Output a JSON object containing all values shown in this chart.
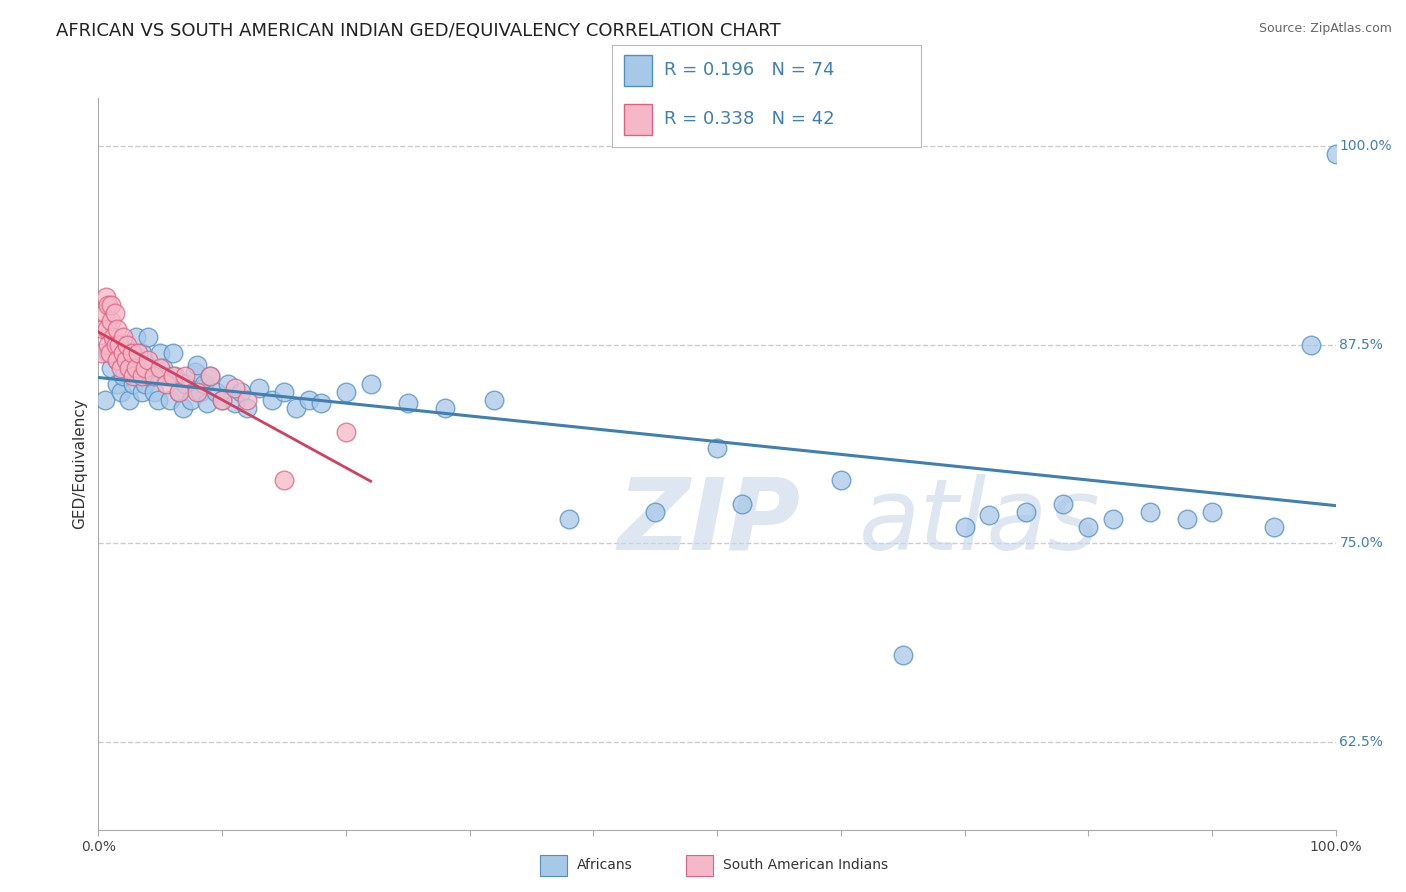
{
  "title": "AFRICAN VS SOUTH AMERICAN INDIAN GED/EQUIVALENCY CORRELATION CHART",
  "source": "Source: ZipAtlas.com",
  "ylabel": "GED/Equivalency",
  "watermark_zip": "ZIP",
  "watermark_atlas": "atlas",
  "blue_R": "0.196",
  "blue_N": "74",
  "pink_R": "0.338",
  "pink_N": "42",
  "blue_color": "#a8c8e8",
  "pink_color": "#f4b8c8",
  "blue_edge_color": "#5090c0",
  "pink_edge_color": "#e06080",
  "blue_line_color": "#4080b0",
  "pink_line_color": "#d04060",
  "legend_color": "#4080b0",
  "blue_x": [
    0.005,
    0.008,
    0.01,
    0.012,
    0.015,
    0.015,
    0.018,
    0.02,
    0.022,
    0.025,
    0.025,
    0.028,
    0.03,
    0.03,
    0.032,
    0.035,
    0.035,
    0.038,
    0.04,
    0.04,
    0.042,
    0.045,
    0.048,
    0.05,
    0.052,
    0.055,
    0.058,
    0.06,
    0.062,
    0.065,
    0.068,
    0.07,
    0.075,
    0.078,
    0.08,
    0.082,
    0.085,
    0.088,
    0.09,
    0.095,
    0.1,
    0.105,
    0.11,
    0.115,
    0.12,
    0.13,
    0.14,
    0.15,
    0.16,
    0.17,
    0.18,
    0.2,
    0.22,
    0.25,
    0.28,
    0.32,
    0.38,
    0.45,
    0.5,
    0.52,
    0.6,
    0.65,
    0.7,
    0.72,
    0.75,
    0.78,
    0.8,
    0.82,
    0.85,
    0.88,
    0.9,
    0.95,
    0.98,
    1.0
  ],
  "blue_y": [
    0.84,
    0.87,
    0.86,
    0.875,
    0.85,
    0.865,
    0.845,
    0.855,
    0.87,
    0.84,
    0.86,
    0.85,
    0.88,
    0.855,
    0.865,
    0.845,
    0.87,
    0.85,
    0.855,
    0.88,
    0.86,
    0.845,
    0.84,
    0.87,
    0.86,
    0.855,
    0.84,
    0.87,
    0.855,
    0.845,
    0.835,
    0.85,
    0.84,
    0.858,
    0.862,
    0.845,
    0.85,
    0.838,
    0.855,
    0.845,
    0.84,
    0.85,
    0.838,
    0.845,
    0.835,
    0.848,
    0.84,
    0.845,
    0.835,
    0.84,
    0.838,
    0.845,
    0.85,
    0.838,
    0.835,
    0.84,
    0.765,
    0.77,
    0.81,
    0.775,
    0.79,
    0.68,
    0.76,
    0.768,
    0.77,
    0.775,
    0.76,
    0.765,
    0.77,
    0.765,
    0.77,
    0.76,
    0.875,
    0.995
  ],
  "pink_x": [
    0.003,
    0.004,
    0.005,
    0.006,
    0.007,
    0.008,
    0.008,
    0.009,
    0.01,
    0.01,
    0.012,
    0.013,
    0.014,
    0.015,
    0.015,
    0.017,
    0.018,
    0.02,
    0.02,
    0.022,
    0.023,
    0.025,
    0.027,
    0.028,
    0.03,
    0.032,
    0.035,
    0.038,
    0.04,
    0.045,
    0.05,
    0.055,
    0.06,
    0.065,
    0.07,
    0.08,
    0.09,
    0.1,
    0.11,
    0.12,
    0.15,
    0.2
  ],
  "pink_y": [
    0.87,
    0.885,
    0.895,
    0.905,
    0.885,
    0.875,
    0.9,
    0.87,
    0.89,
    0.9,
    0.88,
    0.895,
    0.875,
    0.865,
    0.885,
    0.875,
    0.86,
    0.87,
    0.88,
    0.865,
    0.875,
    0.86,
    0.87,
    0.855,
    0.86,
    0.87,
    0.855,
    0.86,
    0.865,
    0.855,
    0.86,
    0.85,
    0.855,
    0.845,
    0.855,
    0.845,
    0.855,
    0.84,
    0.848,
    0.84,
    0.79,
    0.82
  ],
  "xlim": [
    0.0,
    1.0
  ],
  "ylim": [
    0.57,
    1.03
  ],
  "yticks": [
    0.625,
    0.75,
    0.875,
    1.0
  ],
  "ytick_labels": [
    "62.5%",
    "75.0%",
    "87.5%",
    "100.0%"
  ],
  "grid_color": "#cccccc",
  "background_color": "#ffffff",
  "title_fontsize": 13,
  "axis_label_fontsize": 11,
  "tick_fontsize": 10,
  "legend_fontsize": 13,
  "source_fontsize": 9
}
